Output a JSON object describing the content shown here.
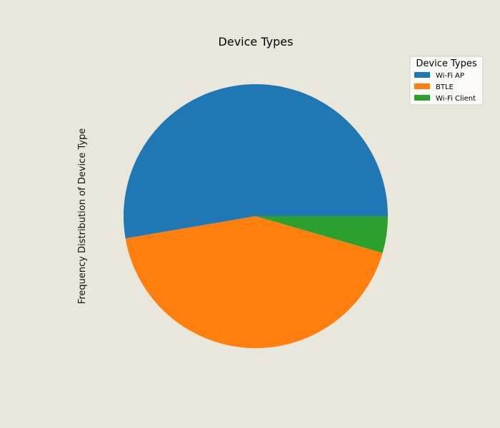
{
  "chart_data": {
    "type": "pie",
    "title": "Device Types",
    "ylabel": "Frequency Distribution of Device Type",
    "legend": {
      "title": "Device Types",
      "placement": "top-right"
    },
    "categories": [
      "Wi-Fi AP",
      "BTLE",
      "Wi-Fi Client"
    ],
    "values": [
      52.7,
      42.8,
      4.5
    ],
    "colors": [
      "#1f77b4",
      "#ff7f0e",
      "#2ca02c"
    ],
    "start_angle_deg": 0,
    "direction": "counterclockwise"
  }
}
